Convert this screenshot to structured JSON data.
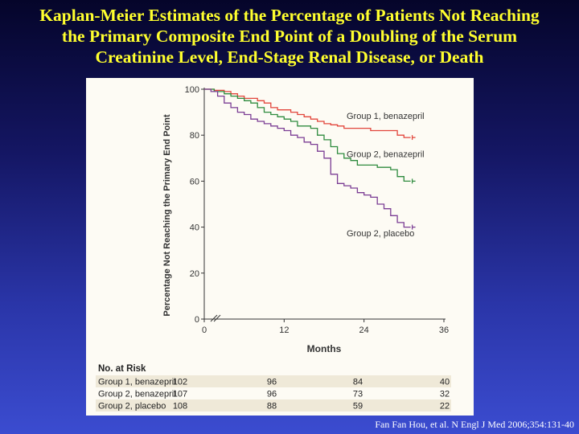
{
  "slide": {
    "title_lines": [
      "Kaplan-Meier Estimates of the Percentage of Patients Not Reaching",
      "the Primary Composite End Point of a Doubling of the Serum",
      "Creatinine Level, End-Stage Renal Disease, or Death"
    ],
    "citation": "Fan Fan Hou, et al. N Engl J Med 2006;354:131-40",
    "title_color": "#ffff2e",
    "background_colors": [
      "#05052a",
      "#3b4cd0"
    ]
  },
  "chart_data": {
    "type": "line",
    "xlabel": "Months",
    "ylabel": "Percentage Not Reaching the Primary End Point",
    "xlim": [
      0,
      36
    ],
    "ylim": [
      0,
      100
    ],
    "x_ticks": [
      "0",
      "12",
      "24",
      "36"
    ],
    "y_ticks": [
      "0",
      "20",
      "40",
      "60",
      "80",
      "100"
    ],
    "grid": false,
    "axis_break": true,
    "series": [
      {
        "name": "Group 1, benazepril",
        "color": "#e2453b",
        "x": [
          0,
          1.5,
          3,
          4,
          5,
          6,
          7,
          8,
          9,
          10,
          11,
          12,
          13,
          14,
          15,
          16,
          17,
          18,
          19,
          20,
          21,
          22,
          23,
          24,
          25,
          26,
          27,
          28,
          29,
          30,
          31
        ],
        "y": [
          100,
          99.5,
          99,
          98,
          97,
          96,
          96,
          95,
          94,
          92,
          91,
          91,
          90,
          89,
          88,
          87,
          86,
          85,
          84.5,
          84,
          83,
          83,
          83,
          83,
          82,
          82,
          82,
          82,
          80,
          79,
          79
        ]
      },
      {
        "name": "Group 2, benazepril",
        "color": "#2e8b3e",
        "x": [
          0,
          1.5,
          3,
          4,
          5,
          6,
          7,
          8,
          9,
          10,
          11,
          12,
          13,
          14,
          15,
          16,
          17,
          18,
          19,
          20,
          21,
          22,
          23,
          24,
          25,
          26,
          27,
          28,
          29,
          30,
          31
        ],
        "y": [
          100,
          99,
          98,
          97,
          96,
          95,
          94,
          92,
          90,
          89,
          88,
          87,
          86,
          84,
          84,
          83,
          80,
          78,
          75,
          72,
          70,
          69,
          67,
          67,
          67,
          66,
          66,
          65,
          62,
          60,
          60
        ]
      },
      {
        "name": "Group 2, placebo",
        "color": "#7b3d94",
        "x": [
          0,
          1,
          2,
          3,
          4,
          5,
          6,
          7,
          8,
          9,
          10,
          11,
          12,
          13,
          14,
          15,
          16,
          17,
          18,
          19,
          20,
          21,
          22,
          23,
          24,
          25,
          26,
          27,
          28,
          29,
          30,
          31
        ],
        "y": [
          100,
          99,
          97,
          94,
          92,
          90,
          89,
          87,
          86,
          85,
          84,
          83,
          82,
          80,
          79,
          77,
          76,
          73,
          70,
          63,
          59,
          58,
          57,
          55,
          54,
          53,
          50,
          48,
          45,
          42,
          40,
          40
        ]
      }
    ],
    "risk_table": {
      "title": "No. at Risk",
      "columns": [
        "0",
        "12",
        "24",
        "36"
      ],
      "rows": [
        {
          "label": "Group 1, benazepril",
          "values": [
            "102",
            "96",
            "84",
            "40"
          ]
        },
        {
          "label": "Group 2, benazepril",
          "values": [
            "107",
            "96",
            "73",
            "32"
          ]
        },
        {
          "label": "Group 2, placebo",
          "values": [
            "108",
            "88",
            "59",
            "22"
          ]
        }
      ]
    }
  }
}
